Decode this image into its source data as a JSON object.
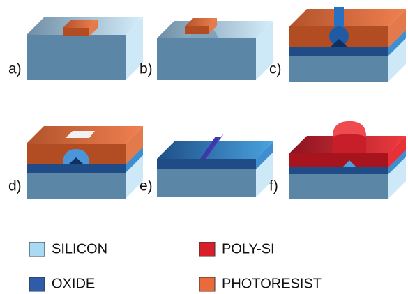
{
  "panels": [
    {
      "label": "a)"
    },
    {
      "label": "b)"
    },
    {
      "label": "c)"
    },
    {
      "label": "d)"
    },
    {
      "label": "e)"
    },
    {
      "label": "f)"
    }
  ],
  "legend": [
    {
      "label": "SILICON",
      "color": "#a9daf3"
    },
    {
      "label": "OXIDE",
      "color": "#2f5ca8"
    },
    {
      "label": "POLY-SI",
      "color": "#d8202b"
    },
    {
      "label": "PHOTORESIST",
      "color": "#ea6a3c"
    }
  ]
}
